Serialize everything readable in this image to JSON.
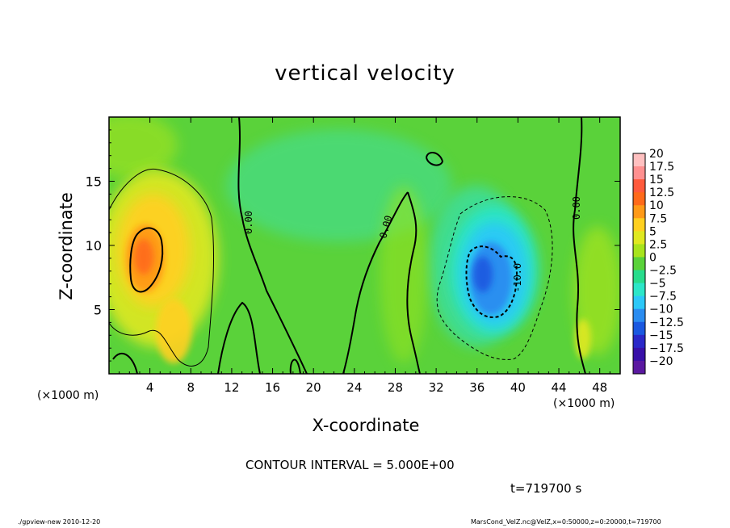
{
  "chart_data": {
    "type": "heatmap",
    "title": "vertical velocity",
    "xlabel": "X-coordinate",
    "ylabel": "Z-coordinate",
    "x_unit_left": "(×1000 m)",
    "x_unit_right": "(×1000 m)",
    "xlim": [
      0,
      50
    ],
    "ylim": [
      0,
      20
    ],
    "x_ticks": [
      4,
      8,
      12,
      16,
      20,
      24,
      28,
      32,
      36,
      40,
      44,
      48
    ],
    "y_ticks": [
      5,
      10,
      15
    ],
    "colorbar": {
      "levels": [
        "20",
        "17.5",
        "15",
        "12.5",
        "10",
        "7.5",
        "5",
        "2.5",
        "0",
        "−2.5",
        "−5",
        "−7.5",
        "−10",
        "−12.5",
        "−15",
        "−17.5",
        "−20"
      ],
      "colors": [
        "#ffc0c0",
        "#ff9090",
        "#ff5a3c",
        "#ff6a1a",
        "#ff9a18",
        "#ffd020",
        "#e0e820",
        "#a8e41c",
        "#5ad23a",
        "#28dc8c",
        "#2ce6c8",
        "#2cc8f8",
        "#2a8cf0",
        "#1a58e0",
        "#2a28c8",
        "#3810a8",
        "#5a18a0"
      ]
    },
    "features": [
      {
        "kind": "updraft",
        "x": 3.5,
        "z": 9.5,
        "max_value": 12.5
      },
      {
        "kind": "downdraft",
        "x": 37.5,
        "z": 7.5,
        "min_value": -12.5
      }
    ],
    "contour_labels": [
      "0.00",
      "0.00",
      "0.00",
      "-10.0"
    ],
    "contour_interval_text": "CONTOUR INTERVAL = 5.000E+00",
    "time_text": "t=719700 s"
  },
  "footer": {
    "left": "./gpview-new   2010-12-20",
    "right": "MarsCond_VelZ.nc@VelZ,x=0:50000,z=0:20000,t=719700"
  },
  "colors": {
    "background_field": "#5ad23a",
    "axis": "#000000"
  }
}
